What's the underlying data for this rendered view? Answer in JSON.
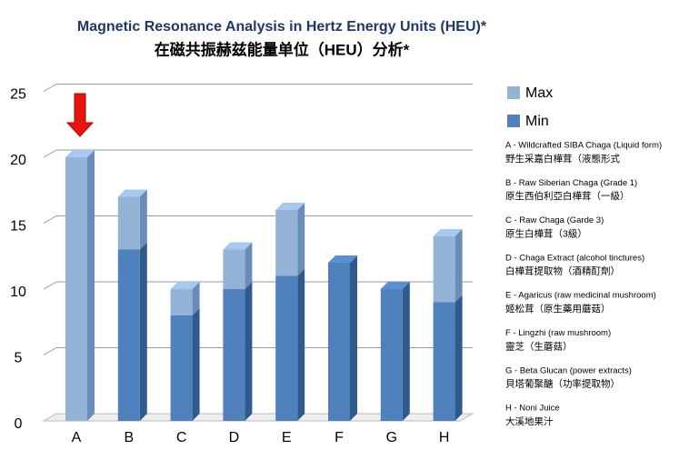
{
  "chart_data": {
    "type": "bar",
    "stacked": true,
    "title": "Magnetic Resonance Analysis in Hertz Energy Units (HEU)*",
    "subtitle": "在磁共振赫兹能量单位（HEU）分析*",
    "categories": [
      "A",
      "B",
      "C",
      "D",
      "E",
      "F",
      "G",
      "H"
    ],
    "series": [
      {
        "name": "Min",
        "color": "#4f81bd",
        "side": "#2f5b8c",
        "values": [
          0,
          13,
          8,
          10,
          11,
          12,
          10,
          9
        ]
      },
      {
        "name": "Max",
        "color": "#95b3d7",
        "side": "#6a8cb8",
        "values": [
          20,
          4,
          2,
          3,
          5,
          0,
          0,
          5
        ]
      }
    ],
    "ylim": [
      0,
      25
    ],
    "yticks": [
      0,
      5,
      10,
      15,
      20,
      25
    ],
    "grid": true,
    "notes": [
      [
        "A - Wildcrafted SIBA Chaga (Liquid form)",
        "野生采嘉白樺茸（液態形式"
      ],
      [
        "B - Raw Siberian Chaga (Grade 1)",
        "原生西伯利亞白樺茸（一級）"
      ],
      [
        "C - Raw Chaga (Garde 3)",
        "原生白樺茸（3級）"
      ],
      [
        "D - Chaga Extract (alcohol tinctures)",
        "白樺茸提取物（酒精酊劑）"
      ],
      [
        "E - Agaricus (raw medicinal mushroom)",
        "姬松茸（原生藥用蘑菇）"
      ],
      [
        "F - Lingzhi (raw mushroom)",
        "靈芝（生蘑菇）"
      ],
      [
        "G - Beta Glucan (power extracts)",
        "貝塔葡聚醣（功率提取物）"
      ],
      [
        "H - Noni Juice",
        "大溪地果汁"
      ]
    ]
  }
}
